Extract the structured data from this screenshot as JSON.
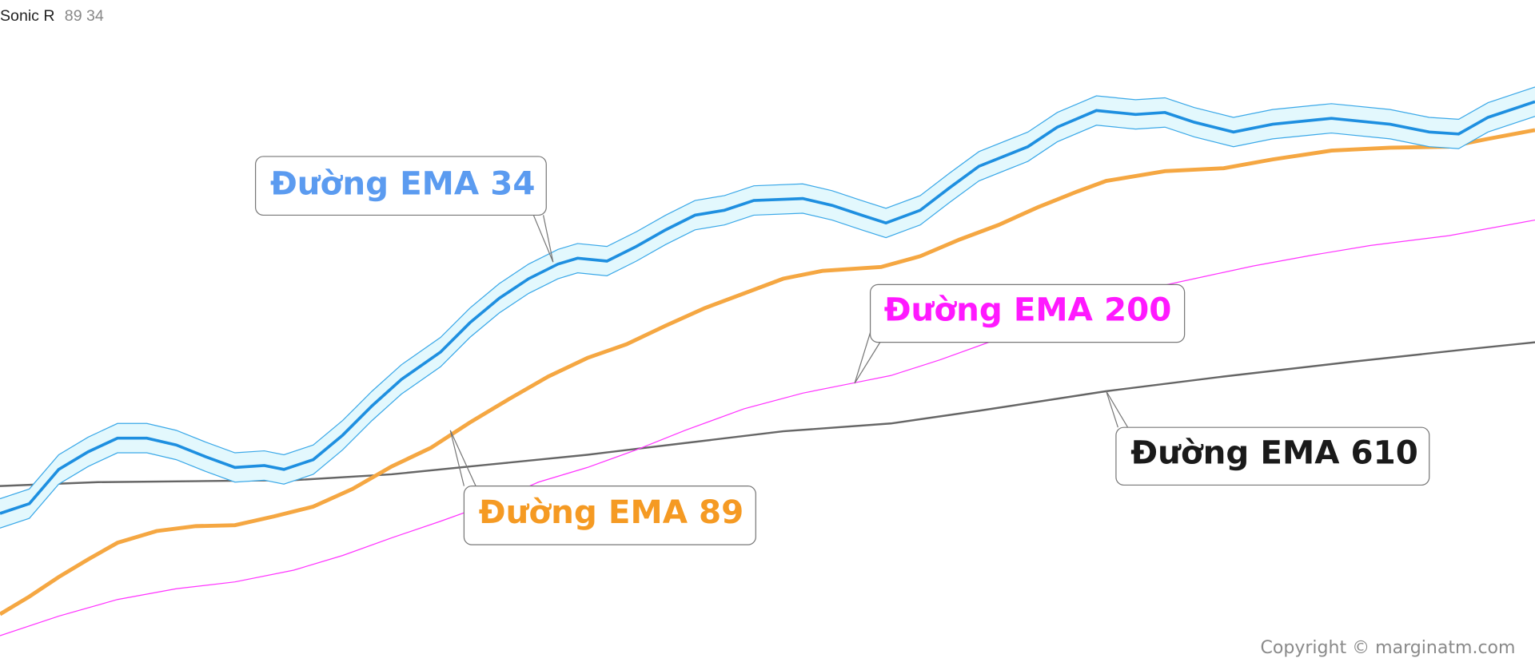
{
  "header": {
    "title": "Sonic R",
    "params": "89 34"
  },
  "labels": {
    "ema34": "Đường EMA 34",
    "ema89": "Đường EMA 89",
    "ema200": "Đường EMA 200",
    "ema610": "Đường EMA 610"
  },
  "footer": {
    "copyright": "Copyright © marginatm.com"
  }
}
